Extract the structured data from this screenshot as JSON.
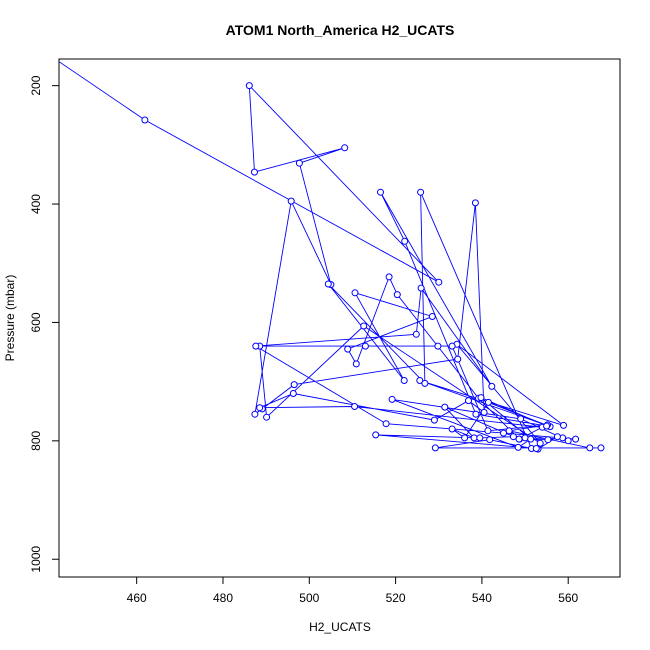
{
  "chart_data": {
    "type": "line",
    "title": "ATOM1 North_America H2_UCATS",
    "xlabel": "H2_UCATS",
    "ylabel": "Pressure (mbar)",
    "xlim": [
      442,
      572
    ],
    "ylim": [
      1030,
      155
    ],
    "x_reversed": false,
    "y_reversed": true,
    "grid": false,
    "legend": "none",
    "xticks": [
      460,
      480,
      500,
      520,
      540,
      560
    ],
    "yticks": [
      200,
      400,
      600,
      800,
      1000
    ],
    "series": [
      {
        "color": "#0000ff",
        "style": "line+points",
        "x": [
          430,
          461.9,
          530,
          486.1,
          487.3,
          508.2,
          497.7,
          505,
          495.8,
          487.4,
          489.1,
          496.5,
          534.4,
          538.5,
          540.5,
          536.9,
          529,
          496.3,
          488.5,
          510.5,
          554,
          548.7,
          531.4,
          538.2,
          533.1,
          536,
          541.5,
          555.8,
          525.6,
          558.9,
          534.2,
          553.5,
          512.6,
          490.1,
          488.5,
          513,
          529.8,
          533.1,
          541.4,
          555.2,
          546.3,
          565,
          567.6,
          529.2,
          541.8,
          551.5,
          525.8,
          526.8,
          504.4,
          522,
          510.6,
          528.5,
          508.9,
          510.9,
          518.5,
          520.4,
          539.2,
          548.6,
          555.3,
          558.7,
          557.5,
          553,
          552.6,
          515.4,
          539.5,
          547.3,
          550,
          561.7,
          545,
          517.8,
          487.6,
          524.8,
          525.9,
          542.3,
          516.5,
          522.1,
          538.6,
          555,
          539.8,
          551.3,
          548.4,
          519.2,
          549,
          560
        ],
        "y": [
          100,
          258,
          532,
          200,
          346,
          305,
          331,
          536,
          395,
          755,
          746,
          705,
          662,
          398,
          752,
          732,
          765,
          720,
          744,
          742,
          777,
          797,
          743,
          795,
          780,
          795,
          735,
          776,
          698,
          774,
          637,
          804,
          606,
          760,
          640,
          640,
          640,
          640,
          783,
          773,
          783,
          812,
          812,
          812,
          798,
          813,
          380,
          703,
          535,
          698,
          550,
          590,
          645,
          670,
          523,
          553,
          728,
          797,
          798,
          795,
          793,
          814,
          813,
          790,
          795,
          793,
          795,
          797,
          787,
          771,
          640,
          620,
          542,
          708,
          380,
          463,
          755,
          775,
          727,
          797,
          811,
          730,
          763,
          800
        ]
      }
    ]
  }
}
